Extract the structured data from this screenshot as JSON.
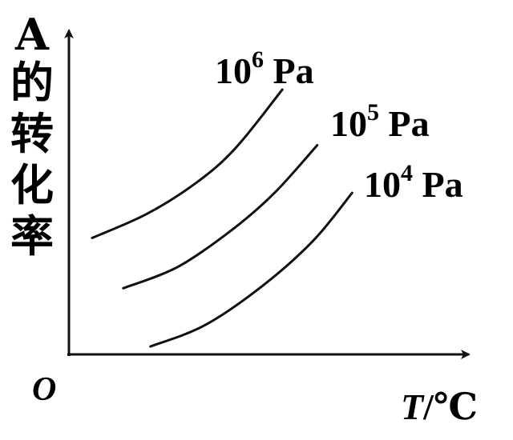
{
  "chart_data": {
    "type": "line",
    "ylabel": [
      "A",
      "的",
      "转",
      "化",
      "率"
    ],
    "xlabel_var": "T",
    "xlabel_unit": "/℃",
    "origin_label": "O",
    "series": [
      {
        "base": "10",
        "exp": "6",
        "unit": " Pa",
        "points": [
          [
            0.06,
            0.44
          ],
          [
            0.2,
            0.53
          ],
          [
            0.33,
            0.65
          ],
          [
            0.43,
            0.78
          ],
          [
            0.55,
            1.0
          ]
        ]
      },
      {
        "base": "10",
        "exp": "5",
        "unit": " Pa",
        "points": [
          [
            0.14,
            0.25
          ],
          [
            0.28,
            0.33
          ],
          [
            0.42,
            0.47
          ],
          [
            0.53,
            0.61
          ],
          [
            0.64,
            0.79
          ]
        ]
      },
      {
        "base": "10",
        "exp": "4",
        "unit": " Pa",
        "points": [
          [
            0.21,
            0.03
          ],
          [
            0.35,
            0.11
          ],
          [
            0.5,
            0.26
          ],
          [
            0.63,
            0.43
          ],
          [
            0.73,
            0.61
          ]
        ]
      }
    ],
    "grid": false
  }
}
